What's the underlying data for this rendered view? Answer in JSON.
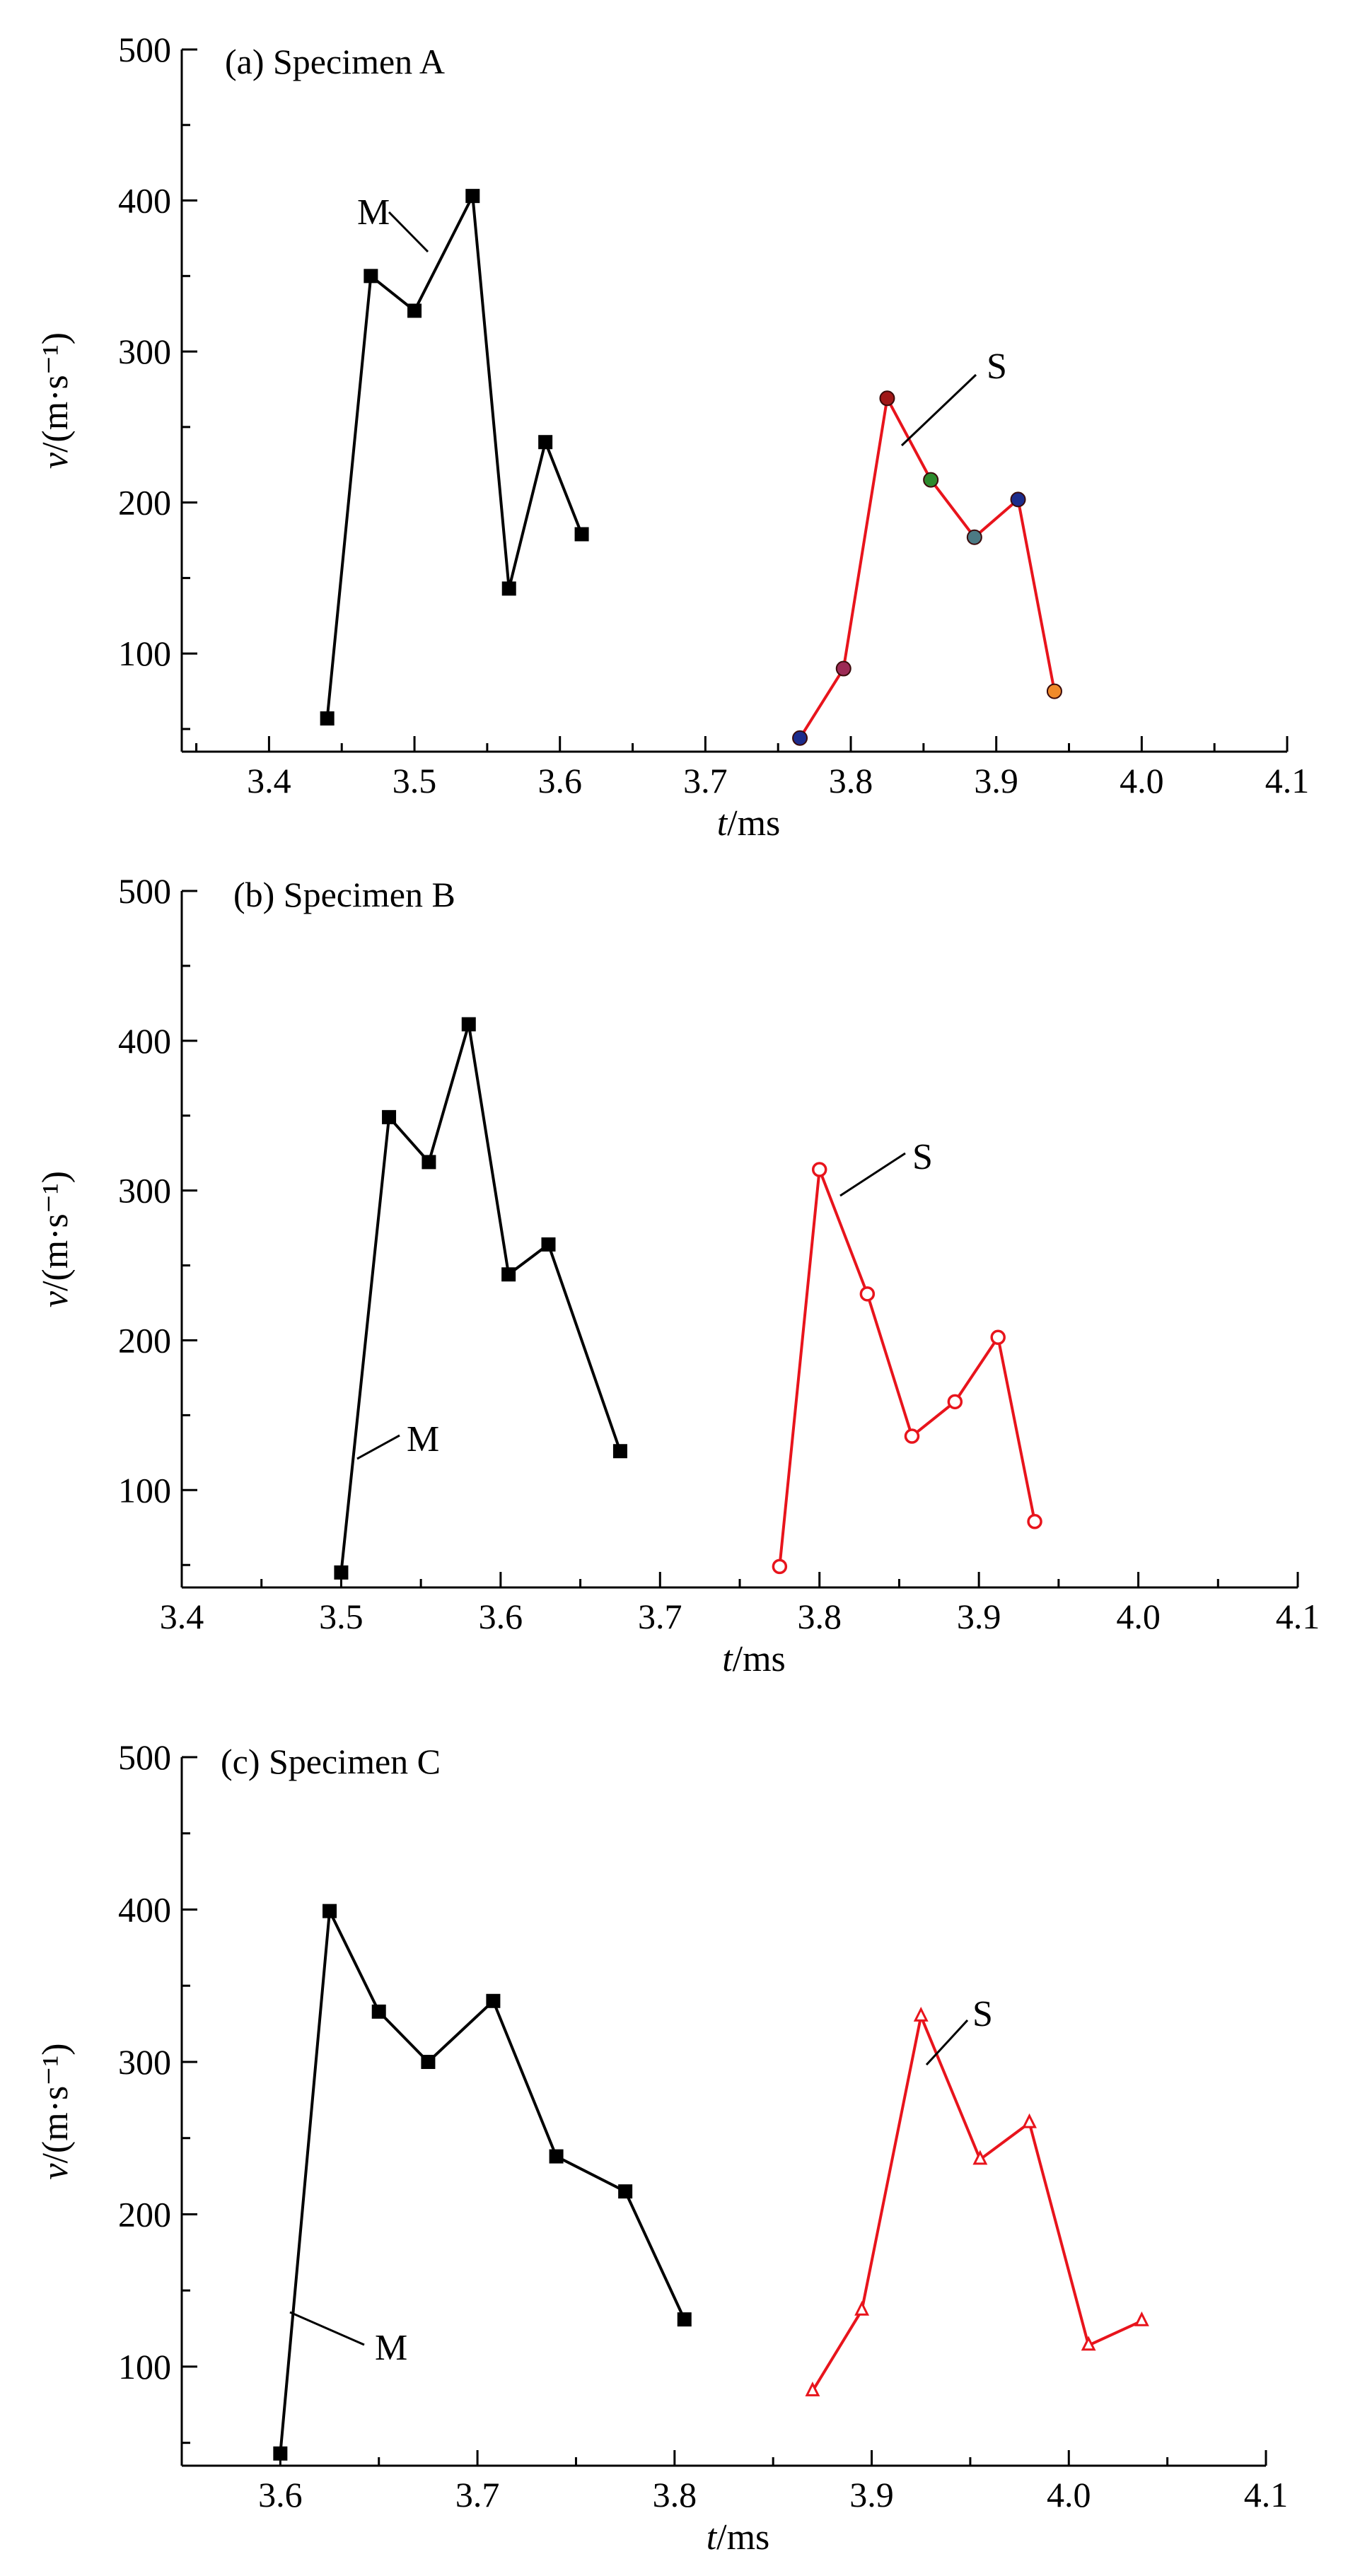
{
  "chart_data": [
    {
      "type": "line",
      "title": "(a) Specimen A",
      "xlabel": "t/ms",
      "ylabel": "v/(m·s⁻¹)",
      "xlim": [
        3.34,
        4.1
      ],
      "ylim": [
        35,
        500
      ],
      "xticks": [
        "3.4",
        "3.5",
        "3.6",
        "3.7",
        "3.8",
        "3.9",
        "4.0",
        "4.1"
      ],
      "yticks": [
        "100",
        "200",
        "300",
        "400",
        "500"
      ],
      "grid": false,
      "series": [
        {
          "name": "M",
          "color": "#000000",
          "marker": "square",
          "x": [
            3.44,
            3.47,
            3.5,
            3.54,
            3.565,
            3.59,
            3.615
          ],
          "y": [
            57,
            350,
            327,
            403,
            143,
            240,
            179
          ]
        },
        {
          "name": "S",
          "color": "#e8141c",
          "marker": "circle-colored",
          "x": [
            3.765,
            3.795,
            3.825,
            3.855,
            3.885,
            3.915,
            3.94
          ],
          "y": [
            44,
            90,
            269,
            215,
            177,
            202,
            75
          ],
          "marker_colors": [
            "#1c2c8c",
            "#9c2a55",
            "#a01818",
            "#2d8a2d",
            "#4c7a84",
            "#1c2c8c",
            "#f08a2a"
          ]
        }
      ]
    },
    {
      "type": "line",
      "title": "(b) Specimen B",
      "xlabel": "t/ms",
      "ylabel": "v/(m·s⁻¹)",
      "xlim": [
        3.4,
        4.1
      ],
      "ylim": [
        35,
        500
      ],
      "xticks": [
        "3.4",
        "3.5",
        "3.6",
        "3.7",
        "3.8",
        "3.9",
        "4.0",
        "4.1"
      ],
      "yticks": [
        "100",
        "200",
        "300",
        "400",
        "500"
      ],
      "grid": false,
      "series": [
        {
          "name": "M",
          "color": "#000000",
          "marker": "square",
          "x": [
            3.5,
            3.53,
            3.555,
            3.58,
            3.605,
            3.63,
            3.675
          ],
          "y": [
            45,
            349,
            319,
            411,
            244,
            264,
            126
          ]
        },
        {
          "name": "S",
          "color": "#e8141c",
          "marker": "circle-open",
          "x": [
            3.775,
            3.8,
            3.83,
            3.858,
            3.885,
            3.912,
            3.935
          ],
          "y": [
            49,
            314,
            231,
            136,
            159,
            202,
            79
          ]
        }
      ]
    },
    {
      "type": "line",
      "title": "(c) Specimen C",
      "xlabel": "t/ms",
      "ylabel": "v/(m·s⁻¹)",
      "xlim": [
        3.55,
        4.1
      ],
      "ylim": [
        35,
        500
      ],
      "xticks": [
        "3.6",
        "3.7",
        "3.8",
        "3.9",
        "4.0",
        "4.1"
      ],
      "yticks": [
        "100",
        "200",
        "300",
        "400",
        "500"
      ],
      "grid": false,
      "series": [
        {
          "name": "M",
          "color": "#000000",
          "marker": "square",
          "x": [
            3.6,
            3.625,
            3.65,
            3.675,
            3.708,
            3.74,
            3.775,
            3.805
          ],
          "y": [
            43,
            399,
            333,
            300,
            340,
            238,
            215,
            131
          ]
        },
        {
          "name": "S",
          "color": "#e8141c",
          "marker": "triangle",
          "x": [
            3.87,
            3.895,
            3.925,
            3.955,
            3.98,
            4.01,
            4.037
          ],
          "y": [
            84,
            137,
            330,
            236,
            260,
            114,
            130
          ]
        }
      ]
    }
  ]
}
